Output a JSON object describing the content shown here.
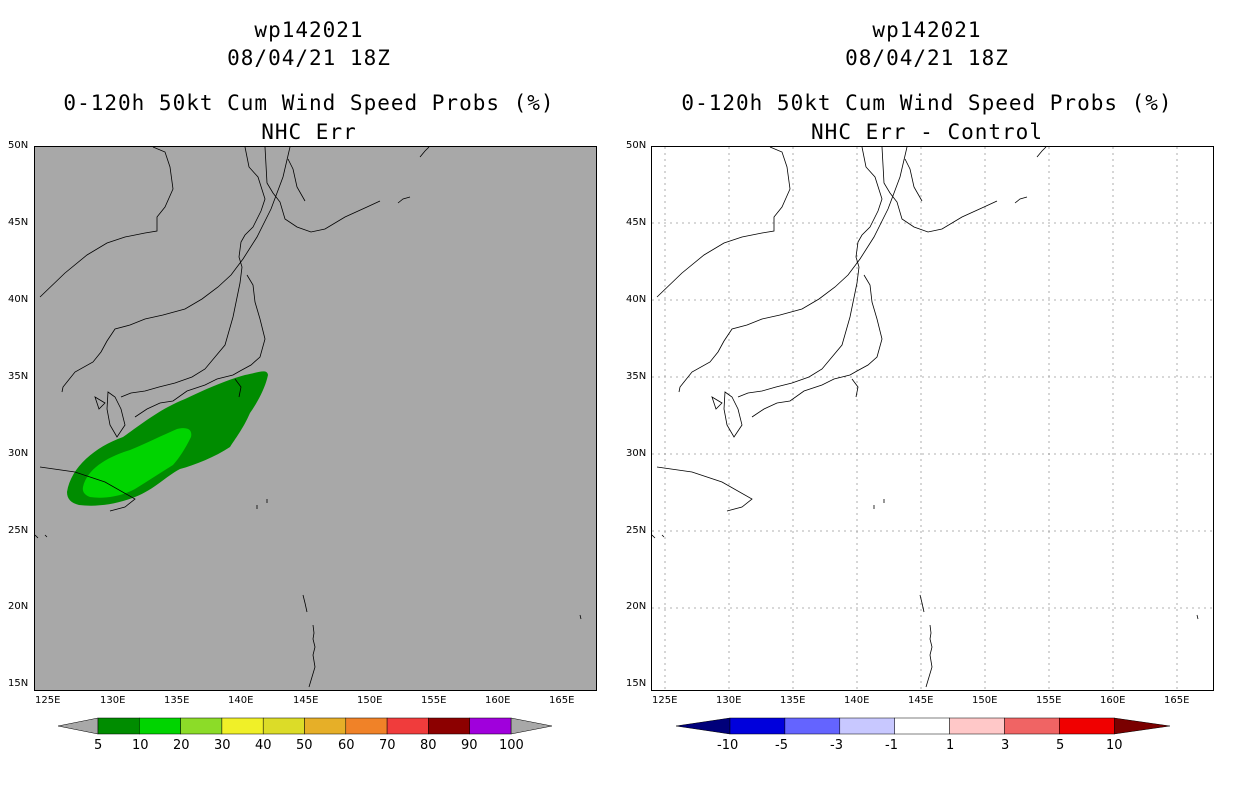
{
  "left_panel": {
    "storm_id": "wp142021",
    "datetime": "08/04/21 18Z",
    "product": "0-120h 50kt Cum Wind Speed Probs (%)",
    "subtitle": "NHC Err",
    "lat_labels": [
      "50N",
      "45N",
      "40N",
      "35N",
      "30N",
      "25N",
      "20N",
      "15N"
    ],
    "lon_labels": [
      "125E",
      "130E",
      "135E",
      "140E",
      "145E",
      "150E",
      "155E",
      "160E",
      "165E"
    ],
    "colorbar": {
      "labels": [
        "5",
        "10",
        "20",
        "30",
        "40",
        "50",
        "60",
        "70",
        "80",
        "90",
        "100"
      ],
      "colors": [
        "#008c00",
        "#00d400",
        "#8cdc28",
        "#f0f028",
        "#dcdc28",
        "#e6af28",
        "#f08228",
        "#f03c3c",
        "#8c0000",
        "#a000dc"
      ],
      "end_color": "#a8a8a8"
    },
    "background_color": "#a8a8a8"
  },
  "right_panel": {
    "storm_id": "wp142021",
    "datetime": "08/04/21 18Z",
    "product": "0-120h 50kt Cum Wind Speed Probs (%)",
    "subtitle": "NHC Err - Control",
    "lat_labels": [
      "50N",
      "45N",
      "40N",
      "35N",
      "30N",
      "25N",
      "20N",
      "15N"
    ],
    "lon_labels": [
      "125E",
      "130E",
      "135E",
      "140E",
      "145E",
      "150E",
      "155E",
      "160E",
      "165E"
    ],
    "colorbar": {
      "labels": [
        "-10",
        "-5",
        "-3",
        "-1",
        "1",
        "3",
        "5",
        "10"
      ],
      "colors": [
        "#0000dc",
        "#6464ff",
        "#c8c8ff",
        "#ffffff",
        "#ffc8c8",
        "#f06464",
        "#f00000"
      ],
      "left_end_color": "#00007a",
      "right_end_color": "#7a0000"
    },
    "background_color": "#ffffff"
  }
}
